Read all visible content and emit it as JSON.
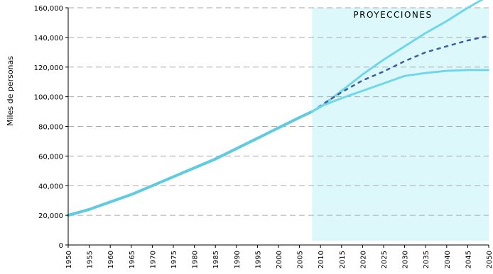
{
  "chart_data": {
    "type": "line",
    "title": "",
    "xlabel": "",
    "ylabel": "Miles de personas",
    "xlim": [
      1950,
      2050
    ],
    "ylim": [
      0,
      160000
    ],
    "x_ticks": [
      "1950",
      "1955",
      "1960",
      "1965",
      "1970",
      "1975",
      "1980",
      "1985",
      "1990",
      "1995",
      "2000",
      "2005",
      "2010",
      "2015",
      "2020",
      "2025",
      "2030",
      "2035",
      "2040",
      "2045",
      "2050"
    ],
    "y_ticks": [
      "0",
      "20,000",
      "40,000",
      "60,000",
      "80,000",
      "100,000",
      "120,000",
      "140,000",
      "160,000"
    ],
    "y_tick_values": [
      0,
      20000,
      40000,
      60000,
      80000,
      100000,
      120000,
      140000,
      160000
    ],
    "grid": "horizontal dashed",
    "projection_region": {
      "label": "PROYECCIONES",
      "from_x": 2008,
      "to_x": 2050,
      "color": "#dcf8fb"
    },
    "colors": {
      "historical": "#5fcbe0",
      "high": "#6fd6ea",
      "medium": "#3b5f9e",
      "low": "#6fd6ea",
      "grid": "#aaaaaa",
      "axis": "#000000"
    },
    "series": [
      {
        "style": "solid",
        "x": [
          1950,
          1955,
          1960,
          1965,
          1970,
          1975,
          1980,
          1985,
          1990,
          1995,
          2000,
          2005,
          2008
        ],
        "y": [
          20000,
          24000,
          29000,
          34000,
          40000,
          46000,
          52000,
          58000,
          65000,
          72000,
          79000,
          86000,
          90000
        ]
      },
      {
        "style": "dotted-light",
        "x": [
          2008,
          2010,
          2015,
          2020,
          2025,
          2030,
          2035,
          2040,
          2045,
          2050
        ],
        "y": [
          90000,
          93000,
          104000,
          115000,
          125000,
          134000,
          143000,
          151000,
          160000,
          168000
        ]
      },
      {
        "style": "dashed-dark",
        "x": [
          2008,
          2010,
          2015,
          2020,
          2025,
          2030,
          2035,
          2040,
          2045,
          2050
        ],
        "y": [
          90000,
          94000,
          103000,
          111000,
          117000,
          124000,
          130000,
          134000,
          138000,
          141000
        ]
      },
      {
        "style": "dotted-light",
        "x": [
          2008,
          2010,
          2015,
          2020,
          2025,
          2030,
          2035,
          2040,
          2045,
          2050
        ],
        "y": [
          90000,
          93500,
          99000,
          104000,
          109000,
          114000,
          116000,
          117500,
          118000,
          118000
        ]
      }
    ]
  }
}
